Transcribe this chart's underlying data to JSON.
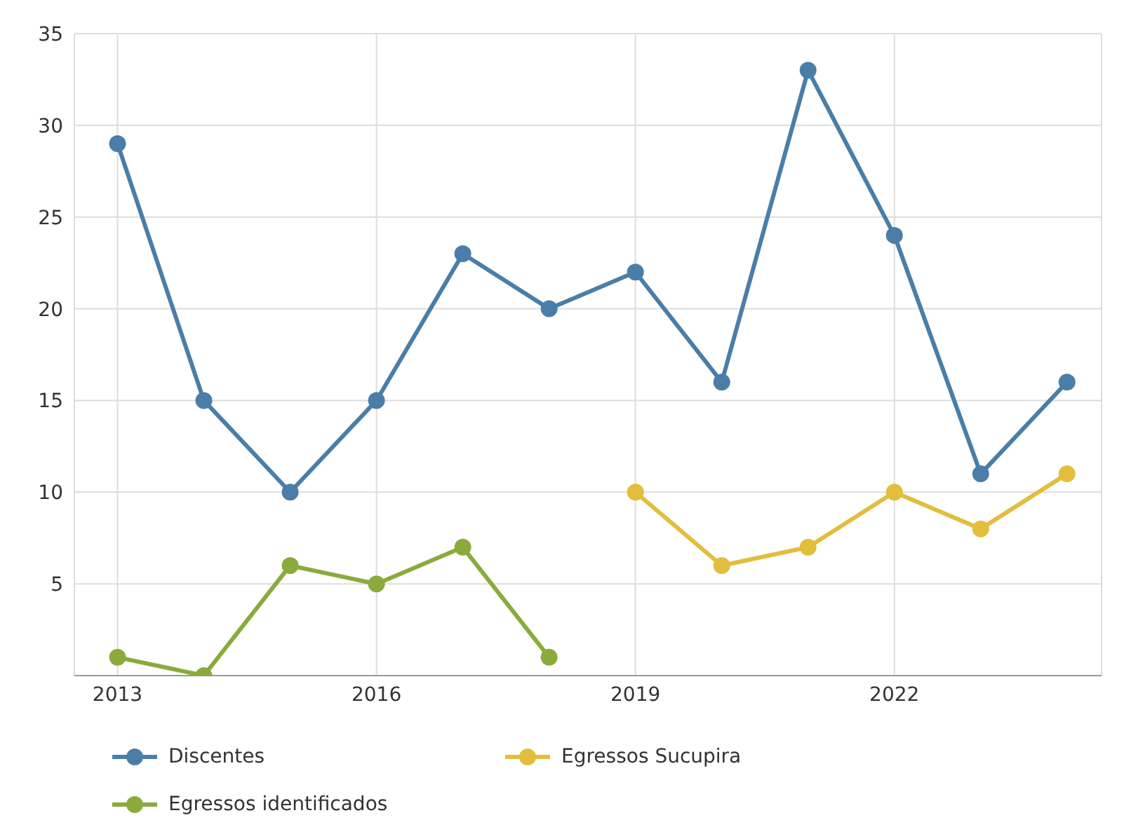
{
  "chart_data": {
    "type": "line",
    "xlim": [
      2012.5,
      2024.4
    ],
    "xticks": [
      2013,
      2016,
      2019,
      2022
    ],
    "ylim": [
      0,
      35
    ],
    "yticks": [
      {
        "value": 0,
        "label": null
      },
      5,
      10,
      15,
      20,
      25,
      30,
      35
    ],
    "grid": true,
    "legend": "bottom",
    "marker": "circle",
    "line_style": "solid",
    "series": [
      {
        "name": "Discentes",
        "color": "#4a7ea8",
        "x": [
          2013,
          2014,
          2015,
          2016,
          2017,
          2018,
          2019,
          2020,
          2021,
          2022,
          2023,
          2024
        ],
        "values": [
          29,
          15,
          10,
          15,
          23,
          20,
          22,
          16,
          33,
          24,
          11,
          16
        ]
      },
      {
        "name": "Egressos identificados",
        "color": "#8aab3c",
        "x": [
          2013,
          2014,
          2015,
          2016,
          2017,
          2018
        ],
        "values": [
          1,
          0,
          6,
          5,
          7,
          1
        ]
      },
      {
        "name": "Egressos Sucupira",
        "color": "#e3bd3c",
        "x": [
          2019,
          2020,
          2021,
          2022,
          2023,
          2024
        ],
        "values": [
          10,
          6,
          7,
          10,
          8,
          11
        ]
      }
    ]
  }
}
